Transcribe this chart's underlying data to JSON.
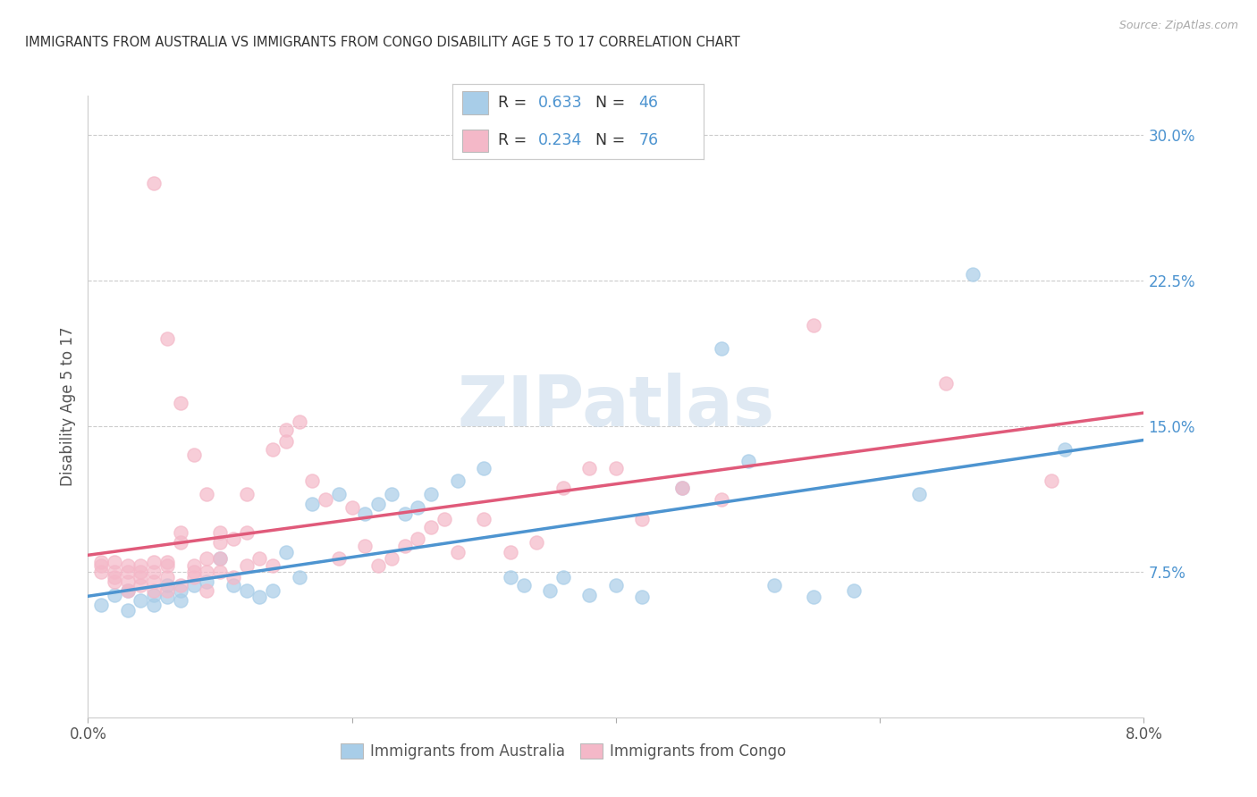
{
  "title": "IMMIGRANTS FROM AUSTRALIA VS IMMIGRANTS FROM CONGO DISABILITY AGE 5 TO 17 CORRELATION CHART",
  "source": "Source: ZipAtlas.com",
  "ylabel": "Disability Age 5 to 17",
  "x_min": 0.0,
  "x_max": 0.08,
  "y_min": 0.0,
  "y_max": 0.32,
  "x_ticks": [
    0.0,
    0.02,
    0.04,
    0.06,
    0.08
  ],
  "x_tick_labels": [
    "0.0%",
    "",
    "",
    "",
    "8.0%"
  ],
  "y_ticks": [
    0.075,
    0.15,
    0.225,
    0.3
  ],
  "y_tick_labels": [
    "7.5%",
    "15.0%",
    "22.5%",
    "30.0%"
  ],
  "australia_color": "#a8cde8",
  "congo_color": "#f4b8c8",
  "australia_line_color": "#4d94d0",
  "congo_line_color": "#e05a7a",
  "australia_R": 0.633,
  "australia_N": 46,
  "congo_R": 0.234,
  "congo_N": 76,
  "watermark": "ZIPatlas",
  "australia_scatter_x": [
    0.001,
    0.002,
    0.003,
    0.003,
    0.004,
    0.005,
    0.005,
    0.006,
    0.006,
    0.007,
    0.007,
    0.008,
    0.009,
    0.01,
    0.011,
    0.012,
    0.013,
    0.014,
    0.015,
    0.016,
    0.017,
    0.019,
    0.021,
    0.022,
    0.023,
    0.024,
    0.025,
    0.026,
    0.028,
    0.03,
    0.032,
    0.033,
    0.035,
    0.036,
    0.038,
    0.04,
    0.042,
    0.045,
    0.048,
    0.05,
    0.052,
    0.055,
    0.058,
    0.063,
    0.067,
    0.074
  ],
  "australia_scatter_y": [
    0.058,
    0.063,
    0.055,
    0.065,
    0.06,
    0.063,
    0.058,
    0.062,
    0.068,
    0.06,
    0.065,
    0.068,
    0.07,
    0.082,
    0.068,
    0.065,
    0.062,
    0.065,
    0.085,
    0.072,
    0.11,
    0.115,
    0.105,
    0.11,
    0.115,
    0.105,
    0.108,
    0.115,
    0.122,
    0.128,
    0.072,
    0.068,
    0.065,
    0.072,
    0.063,
    0.068,
    0.062,
    0.118,
    0.19,
    0.132,
    0.068,
    0.062,
    0.065,
    0.115,
    0.228,
    0.138
  ],
  "congo_scatter_x": [
    0.001,
    0.001,
    0.001,
    0.002,
    0.002,
    0.002,
    0.002,
    0.003,
    0.003,
    0.003,
    0.003,
    0.004,
    0.004,
    0.004,
    0.004,
    0.005,
    0.005,
    0.005,
    0.005,
    0.006,
    0.006,
    0.006,
    0.006,
    0.007,
    0.007,
    0.007,
    0.008,
    0.008,
    0.008,
    0.009,
    0.009,
    0.009,
    0.01,
    0.01,
    0.01,
    0.011,
    0.011,
    0.012,
    0.012,
    0.013,
    0.014,
    0.015,
    0.015,
    0.016,
    0.017,
    0.018,
    0.019,
    0.02,
    0.021,
    0.022,
    0.023,
    0.024,
    0.025,
    0.026,
    0.027,
    0.028,
    0.03,
    0.032,
    0.034,
    0.036,
    0.038,
    0.04,
    0.042,
    0.045,
    0.048,
    0.055,
    0.065,
    0.073,
    0.01,
    0.012,
    0.014,
    0.008,
    0.009,
    0.007,
    0.006,
    0.005
  ],
  "congo_scatter_y": [
    0.075,
    0.078,
    0.08,
    0.07,
    0.072,
    0.075,
    0.08,
    0.065,
    0.07,
    0.075,
    0.078,
    0.068,
    0.072,
    0.075,
    0.078,
    0.065,
    0.07,
    0.075,
    0.08,
    0.065,
    0.072,
    0.078,
    0.08,
    0.068,
    0.09,
    0.095,
    0.072,
    0.075,
    0.078,
    0.065,
    0.075,
    0.082,
    0.075,
    0.082,
    0.09,
    0.072,
    0.092,
    0.078,
    0.095,
    0.082,
    0.078,
    0.142,
    0.148,
    0.152,
    0.122,
    0.112,
    0.082,
    0.108,
    0.088,
    0.078,
    0.082,
    0.088,
    0.092,
    0.098,
    0.102,
    0.085,
    0.102,
    0.085,
    0.09,
    0.118,
    0.128,
    0.128,
    0.102,
    0.118,
    0.112,
    0.202,
    0.172,
    0.122,
    0.095,
    0.115,
    0.138,
    0.135,
    0.115,
    0.162,
    0.195,
    0.275
  ],
  "background_color": "#ffffff",
  "grid_color": "#cccccc",
  "legend_text_color": "#4d94d0",
  "legend_label_color": "#333333"
}
